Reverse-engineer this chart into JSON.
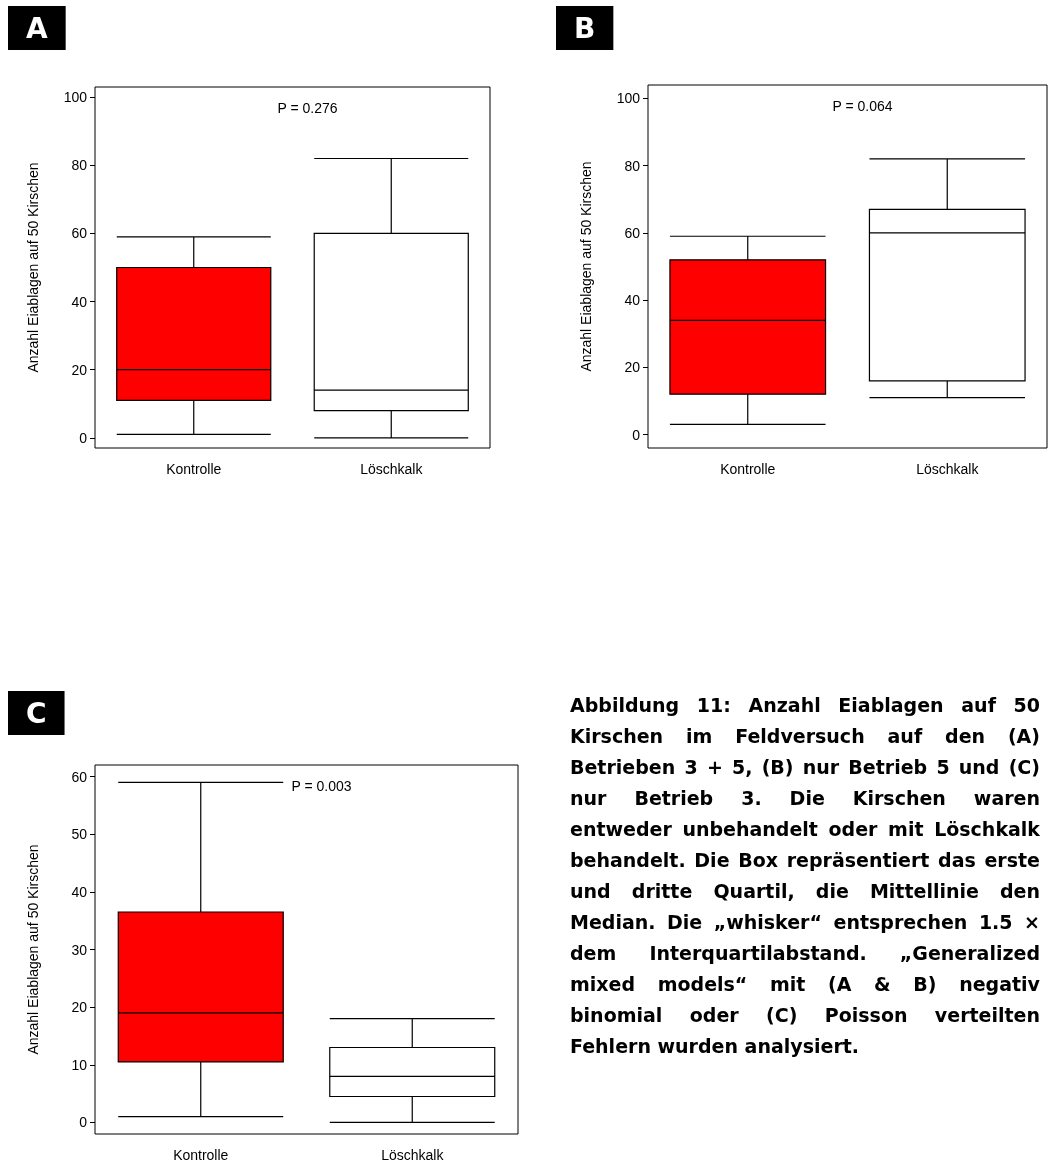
{
  "chart_data": [
    {
      "type": "box",
      "title": "A",
      "ylabel": "Anzahl Eiablagen auf 50 Kirschen",
      "categories": [
        "Kontrolle",
        "Löschkalk"
      ],
      "ylim": [
        -3,
        103
      ],
      "yticks": [
        0,
        20,
        40,
        60,
        80,
        100
      ],
      "annotations": [
        "P = 0.276"
      ],
      "series": [
        {
          "colors": [
            "#ff0000",
            "#ffffff"
          ],
          "boxes": [
            {
              "low": 1,
              "q1": 11,
              "median": 20,
              "q3": 50,
              "high": 59
            },
            {
              "low": 0,
              "q1": 8,
              "median": 14,
              "q3": 60,
              "high": 82
            }
          ]
        }
      ]
    },
    {
      "type": "box",
      "title": "B",
      "ylabel": "Anzahl Eiablagen auf 50 Kirschen",
      "categories": [
        "Kontrolle",
        "Löschkalk"
      ],
      "ylim": [
        -4,
        104
      ],
      "yticks": [
        0,
        20,
        40,
        60,
        80,
        100
      ],
      "annotations": [
        "P = 0.064"
      ],
      "series": [
        {
          "colors": [
            "#ff0000",
            "#ffffff"
          ],
          "boxes": [
            {
              "low": 3,
              "q1": 12,
              "median": 34,
              "q3": 52,
              "high": 59
            },
            {
              "low": 11,
              "q1": 16,
              "median": 60,
              "q3": 67,
              "high": 82
            }
          ]
        }
      ]
    },
    {
      "type": "box",
      "title": "C",
      "ylabel": "Anzahl Eiablagen auf 50 Kirschen",
      "categories": [
        "Kontrolle",
        "Löschkalk"
      ],
      "ylim": [
        -2,
        62
      ],
      "yticks": [
        0,
        10,
        20,
        30,
        40,
        50,
        60
      ],
      "annotations": [
        "P = 0.003"
      ],
      "series": [
        {
          "colors": [
            "#ff0000",
            "#ffffff"
          ],
          "boxes": [
            {
              "low": 1,
              "q1": 10.5,
              "median": 19,
              "q3": 36.5,
              "high": 59
            },
            {
              "low": 0,
              "q1": 4.5,
              "median": 8,
              "q3": 13,
              "high": 18
            }
          ]
        }
      ]
    },
    {
      "type": "other",
      "annotations": [
        "Abbildung 11: Anzahl Eiablagen auf 50 Kirschen im Feldversuch auf den (A) Betrieben 3 + 5, (B) nur Betrieb 5 und (C) nur Betrieb 3. Die Kirschen waren entweder unbehandelt oder mit Löschkalk behandelt. Die Box repräsentiert das erste und dritte Quartil, die Mittellinie den Median. Die „whisker“ entsprechen 1.5 × dem Interquartilabstand. „Generalized mixed models“ mit (A & B) negativ binomial oder (C) Poisson verteilten Fehlern wurden analysiert."
      ]
    }
  ]
}
